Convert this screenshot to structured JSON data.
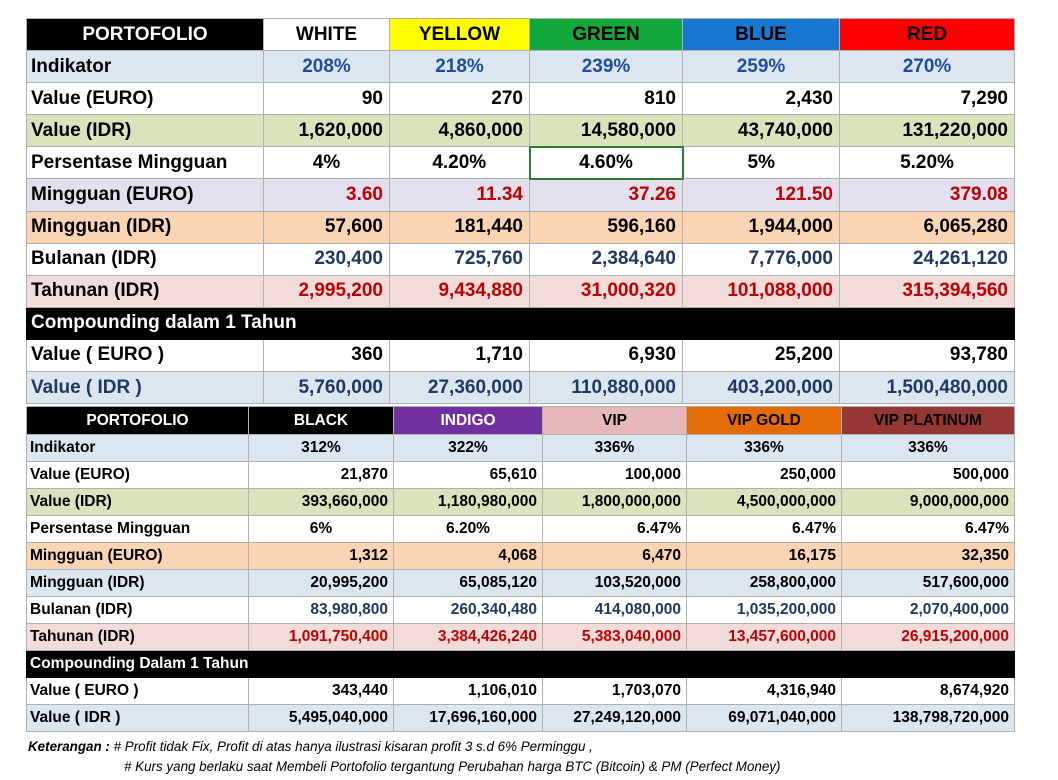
{
  "colors": {
    "white": "#ffffff",
    "yellow": "#ffff00",
    "green": "#12a83c",
    "blue": "#1777d1",
    "red": "#ff0000",
    "indigo": "#7030a0",
    "vip": "#e6b8b8",
    "vip_gold": "#e36c09",
    "vip_platinum": "#953735",
    "row_indikator": "#dce6f1",
    "row_idr": "#d8e4bc",
    "row_mingguan_euro": "#e4dfec",
    "row_mingguan_idr": "#fbd4b4",
    "row_tahunan": "#f2dcdb",
    "text_red": "#c00000",
    "text_blue": "#1f3864",
    "accent_line": "#a31515"
  },
  "top": {
    "header": [
      "PORTOFOLIO",
      "WHITE",
      "YELLOW",
      "GREEN",
      "BLUE",
      "RED"
    ],
    "rows": [
      {
        "label": "Indikator",
        "values": [
          "208%",
          "218%",
          "239%",
          "259%",
          "270%"
        ]
      },
      {
        "label": "Value (EURO)",
        "values": [
          "90",
          "270",
          "810",
          "2,430",
          "7,290"
        ]
      },
      {
        "label": "Value (IDR)",
        "values": [
          "1,620,000",
          "4,860,000",
          "14,580,000",
          "43,740,000",
          "131,220,000"
        ]
      },
      {
        "label": "Persentase Mingguan",
        "values": [
          "4%",
          "4.20%",
          "4.60%",
          "5%",
          "5.20%"
        ]
      },
      {
        "label": "Mingguan (EURO)",
        "values": [
          "3.60",
          "11.34",
          "37.26",
          "121.50",
          "379.08"
        ]
      },
      {
        "label": "Mingguan (IDR)",
        "values": [
          "57,600",
          "181,440",
          "596,160",
          "1,944,000",
          "6,065,280"
        ]
      },
      {
        "label": "Bulanan (IDR)",
        "values": [
          "230,400",
          "725,760",
          "2,384,640",
          "7,776,000",
          "24,261,120"
        ]
      },
      {
        "label": "Tahunan (IDR)",
        "values": [
          "2,995,200",
          "9,434,880",
          "31,000,320",
          "101,088,000",
          "315,394,560"
        ]
      }
    ],
    "compounding_title": "Compounding dalam 1 Tahun",
    "compounding": [
      {
        "label": "Value ( EURO )",
        "values": [
          "360",
          "1,710",
          "6,930",
          "25,200",
          "93,780"
        ]
      },
      {
        "label": "Value ( IDR )",
        "values": [
          "5,760,000",
          "27,360,000",
          "110,880,000",
          "403,200,000",
          "1,500,480,000"
        ]
      }
    ]
  },
  "bottom": {
    "header": [
      "PORTOFOLIO",
      "BLACK",
      "INDIGO",
      "VIP",
      "VIP GOLD",
      "VIP PLATINUM"
    ],
    "rows": [
      {
        "label": "Indikator",
        "values": [
          "312%",
          "322%",
          "336%",
          "336%",
          "336%"
        ]
      },
      {
        "label": "Value (EURO)",
        "values": [
          "21,870",
          "65,610",
          "100,000",
          "250,000",
          "500,000"
        ]
      },
      {
        "label": "Value (IDR)",
        "values": [
          "393,660,000",
          "1,180,980,000",
          "1,800,000,000",
          "4,500,000,000",
          "9,000,000,000"
        ]
      },
      {
        "label": "Persentase Mingguan",
        "values": [
          "6%",
          "6.20%",
          "6.47%",
          "6.47%",
          "6.47%"
        ]
      },
      {
        "label": "Mingguan (EURO)",
        "values": [
          "1,312",
          "4,068",
          "6,470",
          "16,175",
          "32,350"
        ]
      },
      {
        "label": "Mingguan (IDR)",
        "values": [
          "20,995,200",
          "65,085,120",
          "103,520,000",
          "258,800,000",
          "517,600,000"
        ]
      },
      {
        "label": "Bulanan (IDR)",
        "values": [
          "83,980,800",
          "260,340,480",
          "414,080,000",
          "1,035,200,000",
          "2,070,400,000"
        ]
      },
      {
        "label": "Tahunan (IDR)",
        "values": [
          "1,091,750,400",
          "3,384,426,240",
          "5,383,040,000",
          "13,457,600,000",
          "26,915,200,000"
        ]
      }
    ],
    "compounding_title": "Compounding Dalam 1 Tahun",
    "compounding": [
      {
        "label": "Value ( EURO )",
        "values": [
          "343,440",
          "1,106,010",
          "1,703,070",
          "4,316,940",
          "8,674,920"
        ]
      },
      {
        "label": "Value ( IDR )",
        "values": [
          "5,495,040,000",
          "17,696,160,000",
          "27,249,120,000",
          "69,071,040,000",
          "138,798,720,000"
        ]
      }
    ]
  },
  "notes": {
    "prefix": "Keterangan :",
    "line1": "# Profit tidak Fix, Profit di atas hanya ilustrasi kisaran profit 3 s.d 6% Perminggu ,",
    "line2": "#  Kurs yang berlaku saat Membeli Portofolio tergantung Perubahan harga BTC (Bitcoin) & PM (Perfect Money)"
  }
}
